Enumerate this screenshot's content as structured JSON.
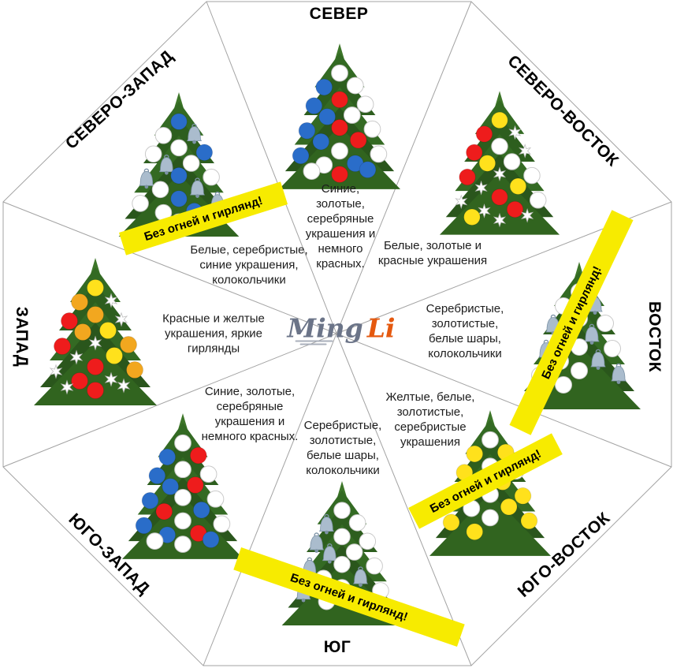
{
  "palette": {
    "banner": "#F7EB00",
    "white": "#FFFFFF",
    "blue": "#2A6DC9",
    "red": "#EE1C1C",
    "yellow": "#FFE11C",
    "orange": "#F2A71F",
    "bell": "#AABCCD",
    "star": "#FFFFFF"
  },
  "logo": {
    "part1": "Ming",
    "part2": "Li",
    "part1_color": "#6B7488",
    "part2_color": "#E5590F"
  },
  "banner_text": "Без огней и гирлянд!",
  "sectors": {
    "north": {
      "label": "СЕВЕР",
      "description": "Синие,\nзолотые,\nсеребряные\nукрашения и\nнемного\nкрасных.",
      "ornaments": [
        "white",
        "blue",
        "white",
        "red",
        "blue",
        "white",
        "blue",
        "white",
        "red",
        "blue",
        "white",
        "blue",
        "red",
        "white",
        "blue",
        "white",
        "white",
        "blue",
        "red",
        "white",
        "blue"
      ]
    },
    "northeast": {
      "label": "СЕВЕРО-ВОСТОК",
      "description": "Белые, золотые и\nкрасные украшения",
      "ornaments": [
        "yellow",
        "red",
        "star",
        "white",
        "red",
        "star",
        "yellow",
        "white",
        "star",
        "red",
        "white",
        "star",
        "yellow",
        "red",
        "star",
        "white",
        "star",
        "red",
        "star",
        "yellow",
        "star"
      ]
    },
    "east": {
      "label": "ВОСТОК",
      "description": "Серебристые,\nзолотистые,\nбелые шары,\nколокольчики",
      "banner": "Без огней и гирлянд!",
      "ornaments": [
        "white",
        "white",
        "bell",
        "white",
        "bell",
        "white",
        "white",
        "bell",
        "white",
        "bell",
        "white",
        "white",
        "bell",
        "white",
        "white",
        "bell",
        "white"
      ]
    },
    "southeast": {
      "label": "ЮГО-ВОСТОК",
      "description": "Желтые, белые,\nзолотистые,\nсеребристые\nукрашения",
      "banner": "Без огней и гирлянд!",
      "ornaments": [
        "white",
        "yellow",
        "yellow",
        "white",
        "yellow",
        "white",
        "yellow",
        "yellow",
        "white",
        "yellow",
        "yellow",
        "white",
        "yellow",
        "white",
        "yellow",
        "yellow",
        "yellow"
      ]
    },
    "south": {
      "label": "ЮГ",
      "description": "Серебристые,\nзолотистые,\nбелые шары,\nколокольчики",
      "banner": "Без огней и гирлянд!",
      "ornaments": [
        "white",
        "bell",
        "white",
        "white",
        "bell",
        "white",
        "bell",
        "white",
        "white",
        "bell",
        "white",
        "white",
        "bell",
        "white",
        "bell",
        "white",
        "white"
      ]
    },
    "southwest": {
      "label": "ЮГО-ЗАПАД",
      "description": "Синие, золотые,\nсеребряные\nукрашения и\nнемного красных.",
      "ornaments": [
        "white",
        "blue",
        "red",
        "white",
        "blue",
        "white",
        "blue",
        "red",
        "white",
        "blue",
        "white",
        "red",
        "blue",
        "white",
        "blue",
        "white",
        "blue",
        "red",
        "white",
        "white",
        "blue"
      ]
    },
    "west": {
      "label": "ЗАПАД",
      "description": "Красные и желтые\nукрашения, яркие\nгирлянды",
      "ornaments": [
        "yellow",
        "orange",
        "star",
        "orange",
        "red",
        "star",
        "orange",
        "yellow",
        "star",
        "red",
        "orange",
        "star",
        "yellow",
        "red",
        "star",
        "orange",
        "red",
        "star",
        "red",
        "star",
        "star"
      ]
    },
    "northwest": {
      "label": "СЕВЕРО-ЗАПАД",
      "description": "Белые, серебристые,\nсиние украшения,\nколокольчики",
      "banner": "Без огней и гирлянд!",
      "ornaments": [
        "blue",
        "white",
        "bell",
        "white",
        "white",
        "blue",
        "bell",
        "white",
        "blue",
        "bell",
        "white",
        "white",
        "bell",
        "blue",
        "white",
        "bell",
        "white",
        "blue",
        "white"
      ]
    }
  }
}
